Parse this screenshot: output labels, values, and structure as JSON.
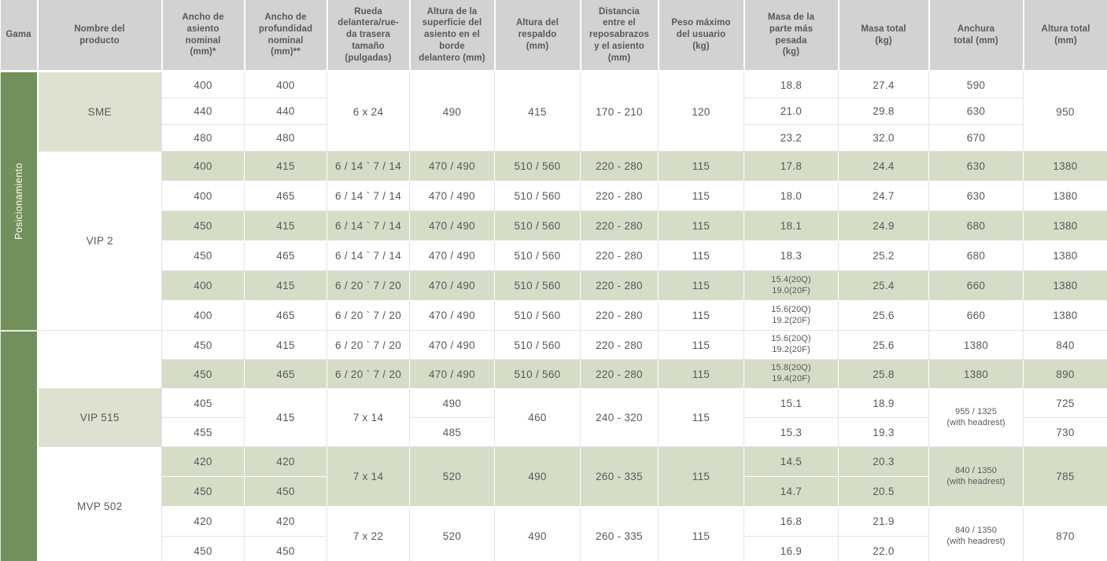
{
  "table": {
    "columns": [
      {
        "label": "Gama"
      },
      {
        "label": "Nombre del\nproducto"
      },
      {
        "label": "Ancho de\nasiento\nnominal\n(mm)*"
      },
      {
        "label": "Ancho de\nprofundidad\nnominal\n(mm)**"
      },
      {
        "label": "Rueda\ndelantera/rue-\nda trasera\ntamaño\n(pulgadas)"
      },
      {
        "label": "Altura de la\nsuperficie del\nasiento en el\nborde\ndelantero (mm)"
      },
      {
        "label": "Altura del\nrespaldo\n(mm)"
      },
      {
        "label": "Distancia\nentre el\nreposabrazos\ny el asiento\n(mm)"
      },
      {
        "label": "Peso máximo\ndel usuario\n(kg)"
      },
      {
        "label": "Masa de la\nparte más\npesada\n(kg)"
      },
      {
        "label": "Masa total\n(kg)"
      },
      {
        "label": "Anchura\ntotal (mm)"
      },
      {
        "label": "Altura total\n(mm)"
      }
    ],
    "gama_sections": [
      {
        "label": "Posicionamiento",
        "products": [
          "SME",
          "VIP 2"
        ]
      },
      {
        "label": "",
        "products": [
          "",
          "VIP 515",
          "MVP 502"
        ]
      }
    ],
    "colors": {
      "gama_green": "#72905b",
      "product_green": "#dde2d0",
      "stripe_green": "#d6ddc6",
      "header_gray": "#d2d2d2",
      "text": "#57585b"
    },
    "rows": [
      {
        "cells": [
          {
            "t": "Posicionamiento",
            "bg": "gama",
            "rs": 9,
            "vertical": true
          },
          {
            "t": "SME",
            "bg": "p",
            "rs": 3
          },
          {
            "t": "400",
            "bg": "w"
          },
          {
            "t": "400",
            "bg": "w"
          },
          {
            "t": "6 x 24",
            "bg": "w",
            "rs": 3
          },
          {
            "t": "490",
            "bg": "w",
            "rs": 3
          },
          {
            "t": "415",
            "bg": "w",
            "rs": 3
          },
          {
            "t": "170 - 210",
            "bg": "w",
            "rs": 3
          },
          {
            "t": "120",
            "bg": "w",
            "rs": 3
          },
          {
            "t": "18.8",
            "bg": "w"
          },
          {
            "t": "27.4",
            "bg": "w"
          },
          {
            "t": "590",
            "bg": "w"
          },
          {
            "t": "950",
            "bg": "w",
            "rs": 3
          }
        ]
      },
      {
        "cells": [
          {
            "t": "440",
            "bg": "w"
          },
          {
            "t": "440",
            "bg": "w"
          },
          {
            "t": "21.0",
            "bg": "w"
          },
          {
            "t": "29.8",
            "bg": "w"
          },
          {
            "t": "630",
            "bg": "w"
          }
        ]
      },
      {
        "cells": [
          {
            "t": "480",
            "bg": "w"
          },
          {
            "t": "480",
            "bg": "w"
          },
          {
            "t": "23.2",
            "bg": "w"
          },
          {
            "t": "32.0",
            "bg": "w"
          },
          {
            "t": "670",
            "bg": "w"
          }
        ]
      },
      {
        "cells": [
          {
            "t": "VIP 2",
            "bg": "pw",
            "rs": 6
          },
          {
            "t": "400",
            "bg": "s"
          },
          {
            "t": "415",
            "bg": "s"
          },
          {
            "t": "6 / 14 ` 7 / 14",
            "bg": "s"
          },
          {
            "t": "470 / 490",
            "bg": "s"
          },
          {
            "t": "510 / 560",
            "bg": "s"
          },
          {
            "t": "220 - 280",
            "bg": "s"
          },
          {
            "t": "115",
            "bg": "s"
          },
          {
            "t": "17.8",
            "bg": "s"
          },
          {
            "t": "24.4",
            "bg": "s"
          },
          {
            "t": "630",
            "bg": "s"
          },
          {
            "t": "1380",
            "bg": "s"
          }
        ]
      },
      {
        "cells": [
          {
            "t": "400",
            "bg": "w"
          },
          {
            "t": "465",
            "bg": "w"
          },
          {
            "t": "6 / 14 ` 7 / 14",
            "bg": "w"
          },
          {
            "t": "470 / 490",
            "bg": "w"
          },
          {
            "t": "510 / 560",
            "bg": "w"
          },
          {
            "t": "220 - 280",
            "bg": "w"
          },
          {
            "t": "115",
            "bg": "w"
          },
          {
            "t": "18.0",
            "bg": "w"
          },
          {
            "t": "24.7",
            "bg": "w"
          },
          {
            "t": "630",
            "bg": "w"
          },
          {
            "t": "1380",
            "bg": "w"
          }
        ]
      },
      {
        "cells": [
          {
            "t": "450",
            "bg": "s"
          },
          {
            "t": "415",
            "bg": "s"
          },
          {
            "t": "6 / 14 ` 7 / 14",
            "bg": "s"
          },
          {
            "t": "470 / 490",
            "bg": "s"
          },
          {
            "t": "510 / 560",
            "bg": "s"
          },
          {
            "t": "220 - 280",
            "bg": "s"
          },
          {
            "t": "115",
            "bg": "s"
          },
          {
            "t": "18.1",
            "bg": "s"
          },
          {
            "t": "24.9",
            "bg": "s"
          },
          {
            "t": "680",
            "bg": "s"
          },
          {
            "t": "1380",
            "bg": "s"
          }
        ]
      },
      {
        "cells": [
          {
            "t": "450",
            "bg": "w"
          },
          {
            "t": "465",
            "bg": "w"
          },
          {
            "t": "6 / 14 ` 7 / 14",
            "bg": "w"
          },
          {
            "t": "470 / 490",
            "bg": "w"
          },
          {
            "t": "510 / 560",
            "bg": "w"
          },
          {
            "t": "220 - 280",
            "bg": "w"
          },
          {
            "t": "115",
            "bg": "w"
          },
          {
            "t": "18.3",
            "bg": "w"
          },
          {
            "t": "25.2",
            "bg": "w"
          },
          {
            "t": "680",
            "bg": "w"
          },
          {
            "t": "1380",
            "bg": "w"
          }
        ]
      },
      {
        "cells": [
          {
            "t": "400",
            "bg": "s"
          },
          {
            "t": "415",
            "bg": "s"
          },
          {
            "t": "6 / 20 ` 7 / 20",
            "bg": "s"
          },
          {
            "t": "470 / 490",
            "bg": "s"
          },
          {
            "t": "510 / 560",
            "bg": "s"
          },
          {
            "t": "220 - 280",
            "bg": "s"
          },
          {
            "t": "115",
            "bg": "s"
          },
          {
            "t": "15.4(20Q)\n19.0(20F)",
            "bg": "s",
            "sm": true
          },
          {
            "t": "25.4",
            "bg": "s"
          },
          {
            "t": "660",
            "bg": "s"
          },
          {
            "t": "1380",
            "bg": "s"
          }
        ]
      },
      {
        "cells": [
          {
            "t": "400",
            "bg": "w"
          },
          {
            "t": "465",
            "bg": "w"
          },
          {
            "t": "6 / 20 ` 7 / 20",
            "bg": "w"
          },
          {
            "t": "470 / 490",
            "bg": "w"
          },
          {
            "t": "510 / 560",
            "bg": "w"
          },
          {
            "t": "220 - 280",
            "bg": "w"
          },
          {
            "t": "115",
            "bg": "w"
          },
          {
            "t": "15.6(20Q)\n19.2(20F)",
            "bg": "w",
            "sm": true
          },
          {
            "t": "25.6",
            "bg": "w"
          },
          {
            "t": "660",
            "bg": "w"
          },
          {
            "t": "1380",
            "bg": "w"
          }
        ]
      },
      {
        "cells": [
          {
            "t": "",
            "bg": "gama",
            "rs": 8,
            "vertical": true
          },
          {
            "t": "",
            "bg": "pw",
            "rs": 2
          },
          {
            "t": "450",
            "bg": "w"
          },
          {
            "t": "415",
            "bg": "w"
          },
          {
            "t": "6 / 20 ` 7 / 20",
            "bg": "w"
          },
          {
            "t": "470 / 490",
            "bg": "w"
          },
          {
            "t": "510 / 560",
            "bg": "w"
          },
          {
            "t": "220 - 280",
            "bg": "w"
          },
          {
            "t": "115",
            "bg": "w"
          },
          {
            "t": "15.6(20Q)\n19.2(20F)",
            "bg": "w",
            "sm": true
          },
          {
            "t": "25.6",
            "bg": "w"
          },
          {
            "t": "1380",
            "bg": "w"
          },
          {
            "t": "840",
            "bg": "w"
          }
        ]
      },
      {
        "cells": [
          {
            "t": "450",
            "bg": "s"
          },
          {
            "t": "465",
            "bg": "s"
          },
          {
            "t": "6 / 20 ` 7 / 20",
            "bg": "s"
          },
          {
            "t": "470 / 490",
            "bg": "s"
          },
          {
            "t": "510 / 560",
            "bg": "s"
          },
          {
            "t": "220 - 280",
            "bg": "s"
          },
          {
            "t": "115",
            "bg": "s"
          },
          {
            "t": "15.8(20Q)\n19.4(20F)",
            "bg": "s",
            "sm": true
          },
          {
            "t": "25.8",
            "bg": "s"
          },
          {
            "t": "1380",
            "bg": "s"
          },
          {
            "t": "890",
            "bg": "s"
          }
        ]
      },
      {
        "cells": [
          {
            "t": "VIP 515",
            "bg": "p",
            "rs": 2
          },
          {
            "t": "405",
            "bg": "w"
          },
          {
            "t": "415",
            "bg": "w",
            "rs": 2
          },
          {
            "t": "7 x 14",
            "bg": "w",
            "rs": 2
          },
          {
            "t": "490",
            "bg": "w"
          },
          {
            "t": "460",
            "bg": "w",
            "rs": 2
          },
          {
            "t": "240 - 320",
            "bg": "w",
            "rs": 2
          },
          {
            "t": "115",
            "bg": "w",
            "rs": 2
          },
          {
            "t": "15.1",
            "bg": "w"
          },
          {
            "t": "18.9",
            "bg": "w"
          },
          {
            "t": "955 / 1325\n(with headrest)",
            "bg": "w",
            "rs": 2,
            "sm": true
          },
          {
            "t": "725",
            "bg": "w"
          }
        ]
      },
      {
        "cells": [
          {
            "t": "455",
            "bg": "w"
          },
          {
            "t": "485",
            "bg": "w"
          },
          {
            "t": "15.3",
            "bg": "w"
          },
          {
            "t": "19.3",
            "bg": "w"
          },
          {
            "t": "730",
            "bg": "w"
          }
        ]
      },
      {
        "cells": [
          {
            "t": "MVP 502",
            "bg": "pw",
            "rs": 4
          },
          {
            "t": "420",
            "bg": "s"
          },
          {
            "t": "420",
            "bg": "s"
          },
          {
            "t": "7 x 14",
            "bg": "s",
            "rs": 2
          },
          {
            "t": "520",
            "bg": "s",
            "rs": 2
          },
          {
            "t": "490",
            "bg": "s",
            "rs": 2
          },
          {
            "t": "260 - 335",
            "bg": "s",
            "rs": 2
          },
          {
            "t": "115",
            "bg": "s",
            "rs": 2
          },
          {
            "t": "14.5",
            "bg": "s"
          },
          {
            "t": "20.3",
            "bg": "s"
          },
          {
            "t": "840 / 1350\n(with headrest)",
            "bg": "s",
            "rs": 2,
            "sm": true
          },
          {
            "t": "785",
            "bg": "s",
            "rs": 2
          }
        ]
      },
      {
        "cells": [
          {
            "t": "450",
            "bg": "s"
          },
          {
            "t": "450",
            "bg": "s"
          },
          {
            "t": "14.7",
            "bg": "s"
          },
          {
            "t": "20.5",
            "bg": "s"
          }
        ]
      },
      {
        "cells": [
          {
            "t": "420",
            "bg": "w"
          },
          {
            "t": "420",
            "bg": "w"
          },
          {
            "t": "7 x 22",
            "bg": "w",
            "rs": 2
          },
          {
            "t": "520",
            "bg": "w",
            "rs": 2
          },
          {
            "t": "490",
            "bg": "w",
            "rs": 2
          },
          {
            "t": "260 - 335",
            "bg": "w",
            "rs": 2
          },
          {
            "t": "115",
            "bg": "w",
            "rs": 2
          },
          {
            "t": "16.8",
            "bg": "w"
          },
          {
            "t": "21.9",
            "bg": "w"
          },
          {
            "t": "840 / 1350\n(with headrest)",
            "bg": "w",
            "rs": 2,
            "sm": true
          },
          {
            "t": "870",
            "bg": "w",
            "rs": 2
          }
        ]
      },
      {
        "cells": [
          {
            "t": "450",
            "bg": "w"
          },
          {
            "t": "450",
            "bg": "w"
          },
          {
            "t": "16.9",
            "bg": "w"
          },
          {
            "t": "22.0",
            "bg": "w"
          }
        ]
      }
    ]
  }
}
